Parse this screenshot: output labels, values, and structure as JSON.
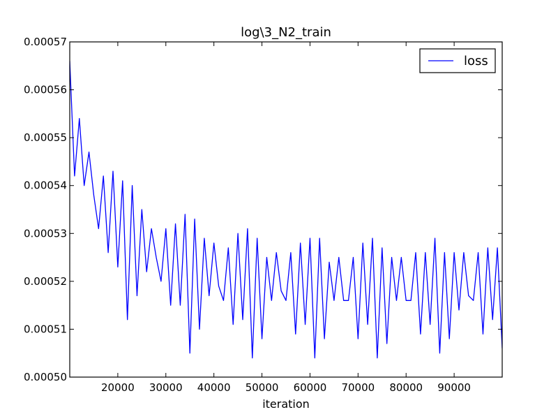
{
  "chart_data": {
    "type": "line",
    "title": "log\\3_N2_train",
    "xlabel": "iteration",
    "ylabel": "",
    "xlim": [
      10000,
      100000
    ],
    "ylim": [
      0.0005,
      0.00057
    ],
    "x_ticks": [
      20000,
      30000,
      40000,
      50000,
      60000,
      70000,
      80000,
      90000
    ],
    "x_tick_labels": [
      "20000",
      "30000",
      "40000",
      "50000",
      "60000",
      "70000",
      "80000",
      "90000"
    ],
    "y_ticks": [
      0.0005,
      0.00051,
      0.00052,
      0.00053,
      0.00054,
      0.00055,
      0.00056,
      0.00057
    ],
    "y_tick_labels": [
      "0.00050",
      "0.00051",
      "0.00052",
      "0.00053",
      "0.00054",
      "0.00055",
      "0.00056",
      "0.00057"
    ],
    "grid": false,
    "legend_position": "top-right",
    "line_color": "#0000ff",
    "series": [
      {
        "name": "loss",
        "x": [
          10000,
          11000,
          12000,
          13000,
          14000,
          15000,
          16000,
          17000,
          18000,
          19000,
          20000,
          21000,
          22000,
          23000,
          24000,
          25000,
          26000,
          27000,
          28000,
          29000,
          30000,
          31000,
          32000,
          33000,
          34000,
          35000,
          36000,
          37000,
          38000,
          39000,
          40000,
          41000,
          42000,
          43000,
          44000,
          45000,
          46000,
          47000,
          48000,
          49000,
          50000,
          51000,
          52000,
          53000,
          54000,
          55000,
          56000,
          57000,
          58000,
          59000,
          60000,
          61000,
          62000,
          63000,
          64000,
          65000,
          66000,
          67000,
          68000,
          69000,
          70000,
          71000,
          72000,
          73000,
          74000,
          75000,
          76000,
          77000,
          78000,
          79000,
          80000,
          81000,
          82000,
          83000,
          84000,
          85000,
          86000,
          87000,
          88000,
          89000,
          90000,
          91000,
          92000,
          93000,
          94000,
          95000,
          96000,
          97000,
          98000,
          99000,
          100000
        ],
        "values": [
          0.000566,
          0.000542,
          0.000554,
          0.00054,
          0.000547,
          0.000538,
          0.000531,
          0.000542,
          0.000526,
          0.000543,
          0.000523,
          0.000541,
          0.000512,
          0.00054,
          0.000517,
          0.000535,
          0.000522,
          0.000531,
          0.000525,
          0.00052,
          0.000531,
          0.000515,
          0.000532,
          0.000515,
          0.000534,
          0.000505,
          0.000533,
          0.00051,
          0.000529,
          0.000517,
          0.000528,
          0.000519,
          0.000516,
          0.000527,
          0.000511,
          0.00053,
          0.000512,
          0.000531,
          0.000504,
          0.000529,
          0.000508,
          0.000525,
          0.000516,
          0.000526,
          0.000518,
          0.000516,
          0.000526,
          0.000509,
          0.000528,
          0.000511,
          0.000529,
          0.000504,
          0.000529,
          0.000508,
          0.000524,
          0.000516,
          0.000525,
          0.000516,
          0.000516,
          0.000525,
          0.000508,
          0.000528,
          0.000511,
          0.000529,
          0.000504,
          0.000527,
          0.000507,
          0.000525,
          0.000516,
          0.000525,
          0.000516,
          0.000516,
          0.000526,
          0.000509,
          0.000526,
          0.000511,
          0.000529,
          0.000505,
          0.000526,
          0.000508,
          0.000526,
          0.000514,
          0.000526,
          0.000517,
          0.000516,
          0.000526,
          0.000509,
          0.000527,
          0.000512,
          0.000527,
          0.000506
        ]
      }
    ]
  }
}
